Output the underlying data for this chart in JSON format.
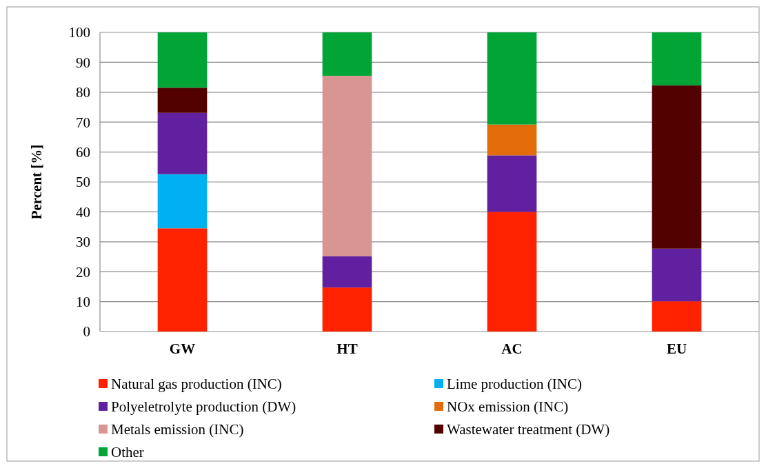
{
  "chart_data": {
    "type": "bar",
    "stacked": true,
    "ylabel": "Percent [%]",
    "categories": [
      "GW",
      "HT",
      "AC",
      "EU"
    ],
    "ylim": [
      0,
      100
    ],
    "yticks": [
      0,
      10,
      20,
      30,
      40,
      50,
      60,
      70,
      80,
      90,
      100
    ],
    "grid": "y",
    "legend": "bottom",
    "series": [
      {
        "name": "Natural gas production (INC)",
        "color": "#ff2200",
        "values": [
          34.5,
          14.7,
          40,
          10.1
        ]
      },
      {
        "name": "Lime production (INC)",
        "color": "#00b0f0",
        "values": [
          18.1,
          0,
          0,
          0
        ]
      },
      {
        "name": "Polyeletrolyte production (DW)",
        "color": "#6020a0",
        "values": [
          20.5,
          10.5,
          18.9,
          17.6
        ]
      },
      {
        "name": "NOx emission (INC)",
        "color": "#e36c0a",
        "values": [
          0,
          0,
          10.3,
          0
        ]
      },
      {
        "name": "Metals emission (INC)",
        "color": "#d99594",
        "values": [
          0,
          60.3,
          0,
          0
        ]
      },
      {
        "name": "Wastewater treatment (DW)",
        "color": "#520000",
        "values": [
          8.4,
          0,
          0,
          54.6
        ]
      },
      {
        "name": "Other",
        "color": "#00a535",
        "values": [
          18.5,
          14.5,
          30.8,
          17.7
        ]
      }
    ]
  }
}
